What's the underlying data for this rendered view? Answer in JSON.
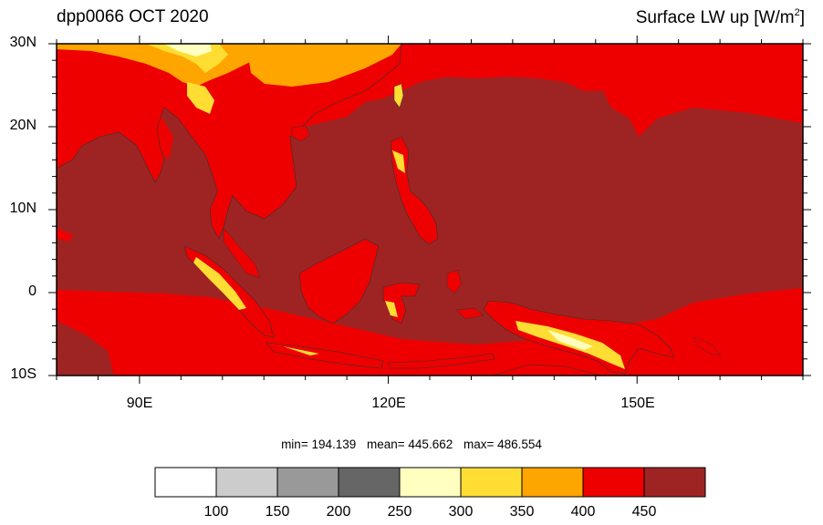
{
  "header": {
    "left_title": "dpp0066 OCT 2020",
    "right_title_main": "Surface LW up [W/m",
    "right_title_sup": "2",
    "right_title_close": "]"
  },
  "map": {
    "lat_range": [
      -10,
      30
    ],
    "lon_range": [
      80,
      170
    ],
    "lat_labels": [
      "30N",
      "20N",
      "10N",
      "0",
      "10S"
    ],
    "lon_labels": [
      "90E",
      "120E",
      "150E"
    ],
    "field_colors": {
      "ocean_warm": "#9e2424",
      "ocean_cool": "#ee0000",
      "land_warm": "#ee0000",
      "highland": "#ffa500",
      "mountain": "#ffdd33",
      "high_peak": "#ffffc0"
    }
  },
  "stats": {
    "min_text": "min= 194.139",
    "mean_text": "mean= 445.662",
    "max_text": "max= 486.554"
  },
  "colorbar": {
    "colors": [
      "#ffffff",
      "#cccccc",
      "#999999",
      "#666666",
      "#ffffc0",
      "#ffdd33",
      "#ffa500",
      "#ee0000",
      "#9e2424"
    ],
    "labels": [
      "100",
      "150",
      "200",
      "250",
      "300",
      "350",
      "400",
      "450"
    ]
  }
}
